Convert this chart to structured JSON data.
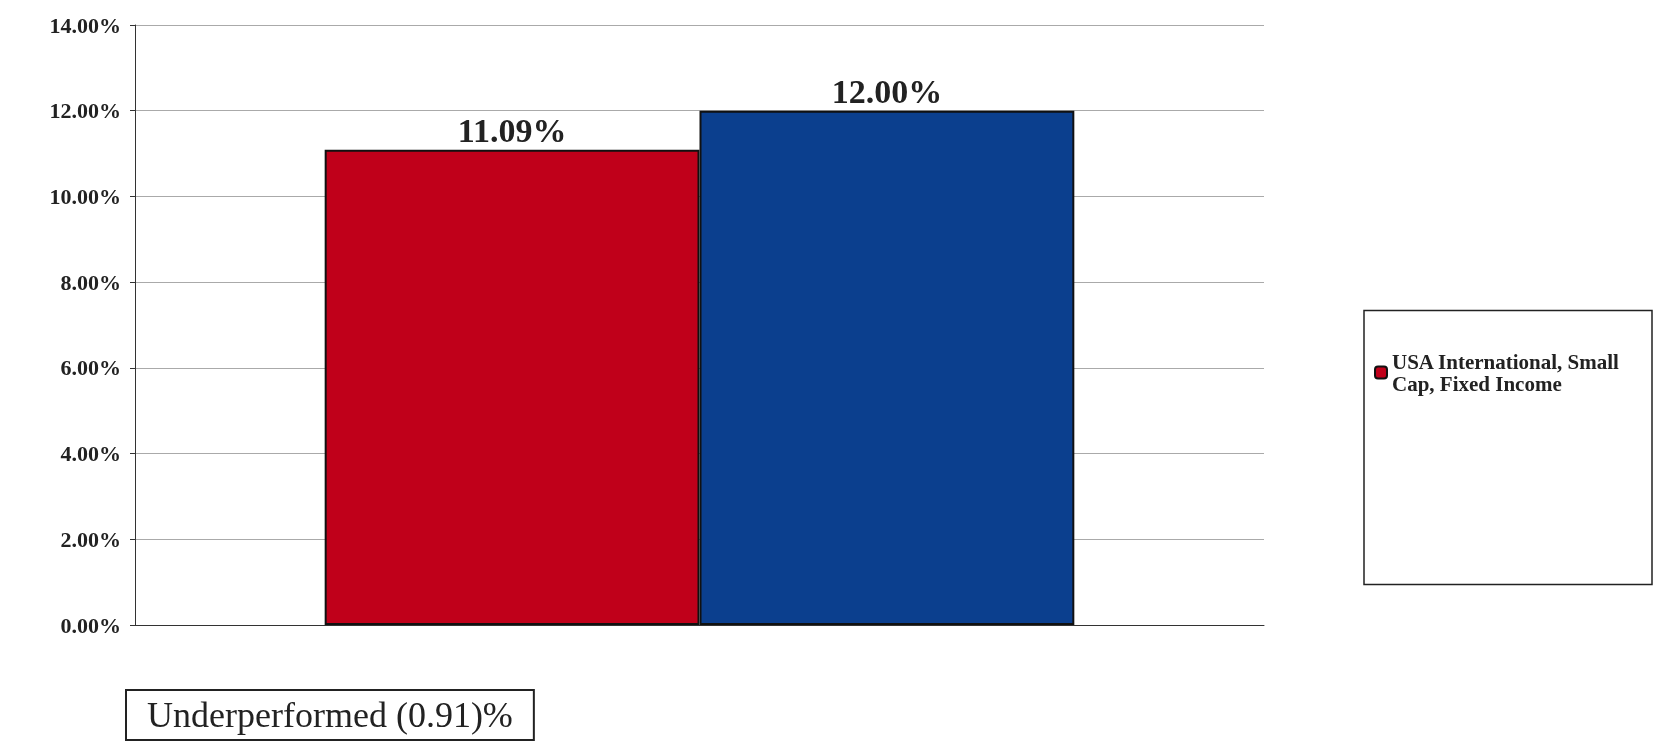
{
  "chart_data": {
    "type": "bar",
    "categories": [
      null
    ],
    "series": [
      {
        "name": "USA International, Small Cap, Fixed Income",
        "color": "#c0001a",
        "values": [
          11.09
        ],
        "value_labels": [
          "11.09%"
        ]
      },
      {
        "color": "#0b3f8e",
        "values": [
          12.0
        ],
        "value_labels": [
          "12.00%"
        ]
      }
    ],
    "ylim": [
      0,
      14
    ],
    "yticks": [
      {
        "value": 0,
        "label": "0.00%"
      },
      {
        "value": 2,
        "label": "2.00%"
      },
      {
        "value": 4,
        "label": "4.00%"
      },
      {
        "value": 6,
        "label": "6.00%"
      },
      {
        "value": 8,
        "label": "8.00%"
      },
      {
        "value": 10,
        "label": "10.00%"
      },
      {
        "value": 12,
        "label": "12.00%"
      },
      {
        "value": 14,
        "label": "14.00%"
      }
    ],
    "grid": "y",
    "legend": "right",
    "annotations": [
      "Underperformed (0.91)%"
    ]
  }
}
